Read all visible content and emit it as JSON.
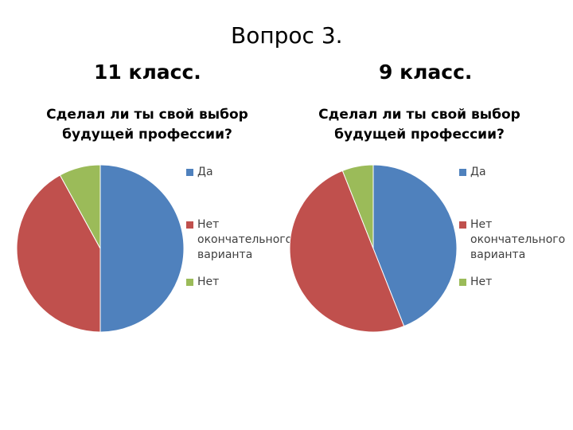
{
  "slide_title": "Вопрос 3.",
  "chart_data": [
    {
      "type": "pie",
      "heading": "11 класс.",
      "title_lines": [
        "Сделал ли ты свой выбор",
        "будущей профессии?"
      ],
      "categories": [
        "Да",
        "Нет окончательного варианта",
        "Нет"
      ],
      "legend_lines": [
        [
          "Да"
        ],
        [
          "Нет",
          "окончательного",
          "варианта"
        ],
        [
          "Нет"
        ]
      ],
      "values": [
        50,
        42,
        8
      ],
      "colors": [
        "#4F81BD",
        "#C0504D",
        "#9BBB59"
      ],
      "legend_position": "right"
    },
    {
      "type": "pie",
      "heading": "9 класс.",
      "title_lines": [
        "Сделал ли ты свой выбор",
        "будущей профессии?"
      ],
      "categories": [
        "Да",
        "Нет окончательного варианта",
        "Нет"
      ],
      "legend_lines": [
        [
          "Да"
        ],
        [
          "Нет",
          "окончательного",
          "варианта"
        ],
        [
          "Нет"
        ]
      ],
      "values": [
        44,
        50,
        6
      ],
      "colors": [
        "#4F81BD",
        "#C0504D",
        "#9BBB59"
      ],
      "legend_position": "right"
    }
  ]
}
